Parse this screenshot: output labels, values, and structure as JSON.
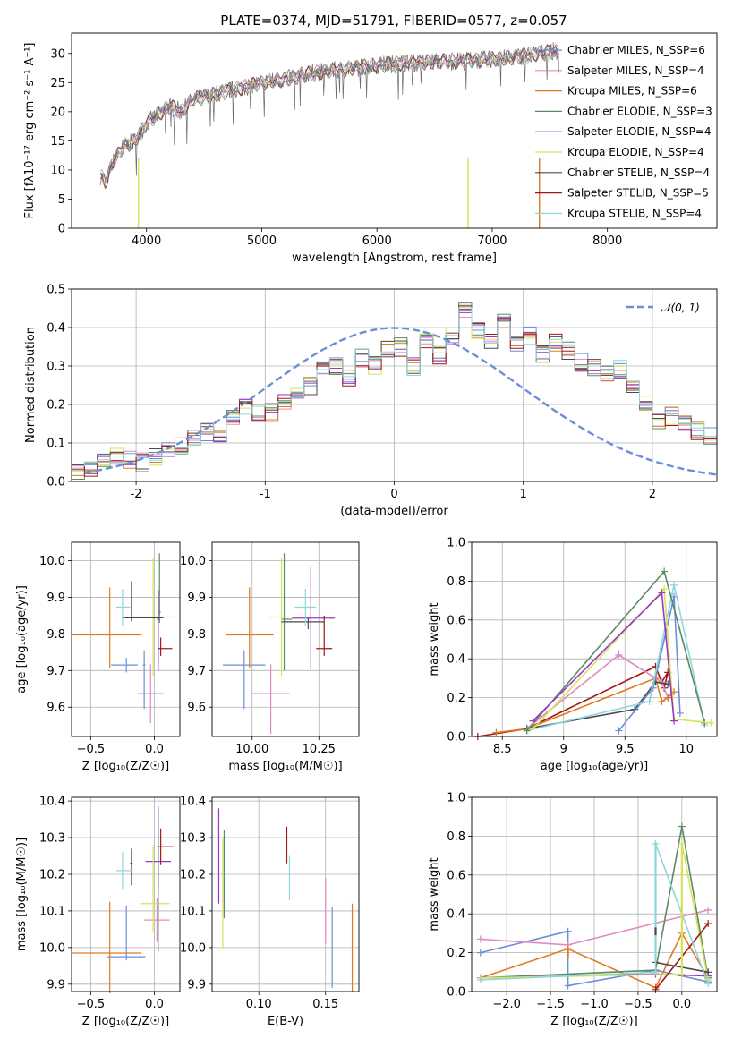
{
  "title": "PLATE=0374, MJD=51791, FIBERID=0577, z=0.057",
  "colors": {
    "c1": "#6a8fd8",
    "c2": "#e08ac2",
    "c3": "#e07a22",
    "c4": "#5b8a63",
    "c5": "#9a36c9",
    "c6": "#d6e25c",
    "c7": "#4a4a4a",
    "c8": "#a01818",
    "c9": "#8dd6dc",
    "data": "#6b6b6b"
  },
  "chart_data": [
    {
      "id": "spectrum",
      "type": "line",
      "xlabel": "wavelength [Angstrom, rest frame]",
      "ylabel": "Flux [f_λ 10^-17 erg cm^-2 s^-1 A^-1]",
      "xlim": [
        3350,
        8950
      ],
      "ylim": [
        0,
        33.5
      ],
      "xticks": [
        4000,
        5000,
        6000,
        7000,
        8000
      ],
      "yticks": [
        0,
        5,
        10,
        15,
        20,
        25,
        30
      ],
      "legend": [
        "Chabrier MILES, N_SSP=6",
        "Salpeter MILES, N_SSP=4",
        "Kroupa MILES, N_SSP=6",
        "Chabrier ELODIE, N_SSP=3",
        "Salpeter ELODIE, N_SSP=4",
        "Kroupa ELODIE, N_SSP=4",
        "Chabrier STELIB, N_SSP=4",
        "Salpeter STELIB, N_SSP=5",
        "Kroupa STELIB, N_SSP=4"
      ],
      "continuum": {
        "x": [
          3600,
          3650,
          3700,
          3800,
          3900,
          4000,
          4100,
          4200,
          4300,
          4400,
          4600,
          4800,
          5000,
          5200,
          5400,
          5600,
          5800,
          6000,
          6200,
          6500,
          6800,
          7000,
          7200,
          7400,
          7600
        ],
        "y": [
          9,
          8,
          11,
          14,
          15,
          18,
          19.5,
          21,
          20,
          22,
          23,
          24,
          25,
          25.5,
          26.5,
          27,
          27.5,
          28,
          28.3,
          28.6,
          28.8,
          29,
          29.4,
          30,
          30.5
        ]
      }
    },
    {
      "id": "residual-histogram",
      "type": "bar",
      "xlabel": "(data-model)/error",
      "ylabel": "Normed distribution",
      "xlim": [
        -2.5,
        2.5
      ],
      "ylim": [
        0,
        0.5
      ],
      "xticks": [
        -2,
        -1,
        0,
        1,
        2
      ],
      "yticks": [
        0,
        0.1,
        0.2,
        0.3,
        0.4,
        0.5
      ],
      "reference": {
        "name": "𝒩(0, 1)",
        "mean": 0,
        "sigma": 1
      },
      "bin_edges_start": -2.5,
      "bin_width": 0.1,
      "histogram": [
        0.03,
        0.035,
        0.06,
        0.07,
        0.055,
        0.05,
        0.06,
        0.08,
        0.09,
        0.11,
        0.13,
        0.12,
        0.16,
        0.19,
        0.18,
        0.18,
        0.21,
        0.23,
        0.25,
        0.29,
        0.3,
        0.27,
        0.32,
        0.3,
        0.34,
        0.35,
        0.3,
        0.36,
        0.33,
        0.38,
        0.44,
        0.39,
        0.37,
        0.41,
        0.36,
        0.38,
        0.33,
        0.36,
        0.34,
        0.31,
        0.3,
        0.28,
        0.29,
        0.24,
        0.2,
        0.16,
        0.17,
        0.15,
        0.13,
        0.12,
        0.1,
        0.11,
        0.09,
        0.08,
        0.08,
        0.07,
        0.06,
        0.05,
        0.045,
        0.04,
        0.04,
        0.03
      ]
    },
    {
      "id": "age-vs-metallicity",
      "type": "scatter",
      "xlabel": "Z [log₁₀(Z/Z☉)]",
      "ylabel": "age  [log₁₀(age/yr)]",
      "xlim": [
        -0.65,
        0.2
      ],
      "ylim": [
        9.52,
        10.05
      ],
      "xticks": [
        -0.5,
        0.0
      ],
      "xticklabels": [
        "−0.5",
        "0.0"
      ],
      "yticks": [
        9.6,
        9.7,
        9.8,
        9.9,
        10.0
      ],
      "points": [
        {
          "x": -0.22,
          "y": 9.715,
          "xerr": [
            0.12,
            0.09
          ],
          "yerr": [
            0.02,
            0.02
          ],
          "c": "c1"
        },
        {
          "x": -0.08,
          "y": 9.715,
          "xerr": [
            0.01,
            0.01
          ],
          "yerr": [
            0.12,
            0.04
          ],
          "c": "c1"
        },
        {
          "x": -0.03,
          "y": 9.637,
          "xerr": [
            0.1,
            0.1
          ],
          "yerr": [
            0.08,
            0.08
          ],
          "c": "c2"
        },
        {
          "x": -0.35,
          "y": 9.797,
          "xerr": [
            0.3,
            0.25
          ],
          "yerr": [
            0.09,
            0.13
          ],
          "c": "c3"
        },
        {
          "x": 0.04,
          "y": 9.86,
          "xerr": [
            0.01,
            0.01
          ],
          "yerr": [
            0.03,
            0.16
          ],
          "c": "c4"
        },
        {
          "x": 0.03,
          "y": 9.84,
          "xerr": [
            0.01,
            0.01
          ],
          "yerr": [
            0.14,
            0.08
          ],
          "c": "c5"
        },
        {
          "x": -0.01,
          "y": 9.846,
          "xerr": [
            0.18,
            0.16
          ],
          "yerr": [
            0.16,
            0.16
          ],
          "c": "c6"
        },
        {
          "x": -0.18,
          "y": 9.844,
          "xerr": [
            0.07,
            0.25
          ],
          "yerr": [
            0.01,
            0.1
          ],
          "c": "c7"
        },
        {
          "x": 0.05,
          "y": 9.76,
          "xerr": [
            0.02,
            0.09
          ],
          "yerr": [
            0.02,
            0.03
          ],
          "c": "c8"
        },
        {
          "x": -0.25,
          "y": 9.873,
          "xerr": [
            0.05,
            0.06
          ],
          "yerr": [
            0.05,
            0.05
          ],
          "c": "c9"
        }
      ]
    },
    {
      "id": "age-vs-mass",
      "type": "scatter",
      "xlabel": "mass [log₁₀(M/M☉)]",
      "ylabel": "",
      "xlim": [
        9.85,
        10.4
      ],
      "ylim": [
        9.52,
        10.05
      ],
      "xticks": [
        10.0,
        10.25
      ],
      "xticklabels": [
        "10.00",
        "10.25"
      ],
      "yticks": [
        9.6,
        9.7,
        9.8,
        9.9,
        10.0
      ],
      "points": [
        {
          "x": 9.97,
          "y": 9.715,
          "xerr": [
            0.08,
            0.08
          ],
          "yerr": [
            0.12,
            0.04
          ],
          "c": "c1"
        },
        {
          "x": 10.07,
          "y": 9.637,
          "xerr": [
            0.07,
            0.07
          ],
          "yerr": [
            0.11,
            0.08
          ],
          "c": "c2"
        },
        {
          "x": 9.99,
          "y": 9.797,
          "xerr": [
            0.09,
            0.09
          ],
          "yerr": [
            0.09,
            0.13
          ],
          "c": "c3"
        },
        {
          "x": 10.12,
          "y": 9.84,
          "xerr": [
            0.01,
            0.03
          ],
          "yerr": [
            0.14,
            0.18
          ],
          "c": "c4"
        },
        {
          "x": 10.22,
          "y": 9.843,
          "xerr": [
            0.07,
            0.09
          ],
          "yerr": [
            0.14,
            0.14
          ],
          "c": "c5"
        },
        {
          "x": 10.11,
          "y": 9.846,
          "xerr": [
            0.05,
            0.04
          ],
          "yerr": [
            0.16,
            0.16
          ],
          "c": "c6"
        },
        {
          "x": 10.21,
          "y": 9.833,
          "xerr": [
            0.1,
            0.06
          ],
          "yerr": [
            0.02,
            0.01
          ],
          "c": "c7"
        },
        {
          "x": 10.27,
          "y": 9.76,
          "xerr": [
            0.03,
            0.03
          ],
          "yerr": [
            0.02,
            0.09
          ],
          "c": "c8"
        },
        {
          "x": 10.2,
          "y": 9.873,
          "xerr": [
            0.04,
            0.04
          ],
          "yerr": [
            0.05,
            0.05
          ],
          "c": "c9"
        }
      ]
    },
    {
      "id": "mass-weight-vs-age",
      "type": "line",
      "xlabel": "age  [log₁₀(age/yr)]",
      "ylabel": "mass weight",
      "xlim": [
        8.25,
        10.25
      ],
      "ylim": [
        0,
        1.0
      ],
      "xticks": [
        8.5,
        9.0,
        9.5,
        10.0
      ],
      "yticks": [
        0,
        0.2,
        0.4,
        0.6,
        0.8,
        1.0
      ],
      "series": [
        {
          "c": "c8",
          "x": [
            8.3,
            8.7,
            9.75,
            9.8,
            9.85,
            9.82
          ],
          "y": [
            0.0,
            0.04,
            0.36,
            0.28,
            0.33,
            0.25
          ]
        },
        {
          "c": "c2",
          "x": [
            8.7,
            9.45,
            9.8,
            9.85
          ],
          "y": [
            0.04,
            0.42,
            0.28,
            0.2
          ]
        },
        {
          "c": "c3",
          "x": [
            8.45,
            8.7,
            9.75,
            9.8,
            9.85,
            9.9
          ],
          "y": [
            0.02,
            0.04,
            0.3,
            0.18,
            0.2,
            0.23
          ]
        },
        {
          "c": "c7",
          "x": [
            8.7,
            9.58,
            9.75,
            9.85
          ],
          "y": [
            0.04,
            0.14,
            0.28,
            0.27
          ]
        },
        {
          "c": "c1",
          "x": [
            9.45,
            9.73,
            9.9,
            9.95
          ],
          "y": [
            0.03,
            0.25,
            0.72,
            0.12
          ]
        },
        {
          "c": "c9",
          "x": [
            8.7,
            9.7,
            9.9,
            10.15
          ],
          "y": [
            0.03,
            0.18,
            0.78,
            0.06
          ]
        },
        {
          "c": "c4",
          "x": [
            8.7,
            9.82,
            10.15
          ],
          "y": [
            0.03,
            0.85,
            0.07
          ]
        },
        {
          "c": "c6",
          "x": [
            8.75,
            9.82,
            9.9,
            10.2
          ],
          "y": [
            0.04,
            0.76,
            0.09,
            0.07
          ]
        },
        {
          "c": "c5",
          "x": [
            8.75,
            9.8,
            9.9
          ],
          "y": [
            0.08,
            0.74,
            0.08
          ]
        }
      ]
    },
    {
      "id": "mass-vs-metallicity",
      "type": "scatter",
      "xlabel": "Z [log₁₀(Z/Z☉)]",
      "ylabel": "mass [log₁₀(M/M☉)]",
      "xlim": [
        -0.65,
        0.2
      ],
      "ylim": [
        9.88,
        10.41
      ],
      "xticks": [
        -0.5,
        0.0
      ],
      "xticklabels": [
        "−0.5",
        "0.0"
      ],
      "yticks": [
        9.9,
        10.0,
        10.1,
        10.2,
        10.3,
        10.4
      ],
      "points": [
        {
          "x": -0.22,
          "y": 9.975,
          "xerr": [
            0.15,
            0.15
          ],
          "yerr": [
            0.01,
            0.14
          ],
          "c": "c1"
        },
        {
          "x": -0.35,
          "y": 9.985,
          "xerr": [
            0.3,
            0.25
          ],
          "yerr": [
            0.11,
            0.14
          ],
          "c": "c3"
        },
        {
          "x": 0.02,
          "y": 10.075,
          "xerr": [
            0.1,
            0.1
          ],
          "yerr": [
            0.06,
            0.06
          ],
          "c": "c2"
        },
        {
          "x": 0.03,
          "y": 10.235,
          "xerr": [
            0.1,
            0.1
          ],
          "yerr": [
            0.08,
            0.15
          ],
          "c": "c5"
        },
        {
          "x": -0.01,
          "y": 10.12,
          "xerr": [
            0.1,
            0.13
          ],
          "yerr": [
            0.08,
            0.16
          ],
          "c": "c6"
        },
        {
          "x": 0.03,
          "y": 10.11,
          "xerr": [
            0.01,
            0.01
          ],
          "yerr": [
            0.12,
            0.22
          ],
          "c": "c4"
        },
        {
          "x": -0.18,
          "y": 10.23,
          "xerr": [
            0.01,
            0.01
          ],
          "yerr": [
            0.06,
            0.04
          ],
          "c": "c7"
        },
        {
          "x": 0.05,
          "y": 10.275,
          "xerr": [
            0.03,
            0.1
          ],
          "yerr": [
            0.05,
            0.05
          ],
          "c": "c8"
        },
        {
          "x": -0.25,
          "y": 10.21,
          "xerr": [
            0.05,
            0.08
          ],
          "yerr": [
            0.05,
            0.05
          ],
          "c": "c9"
        }
      ]
    },
    {
      "id": "mass-vs-ebv",
      "type": "scatter",
      "xlabel": "E(B-V)",
      "ylabel": "",
      "xlim": [
        0.065,
        0.175
      ],
      "ylim": [
        9.88,
        10.41
      ],
      "xticks": [
        0.1,
        0.15
      ],
      "xticklabels": [
        "0.10",
        "0.15"
      ],
      "yticks": [
        9.9,
        10.0,
        10.1,
        10.2,
        10.3,
        10.4
      ],
      "points": [
        {
          "x": 0.07,
          "y": 10.25,
          "xerr": [
            0,
            0
          ],
          "yerr": [
            0.13,
            0.13
          ],
          "c": "c5"
        },
        {
          "x": 0.073,
          "y": 10.15,
          "xerr": [
            0,
            0
          ],
          "yerr": [
            0.15,
            0.15
          ],
          "c": "c6"
        },
        {
          "x": 0.074,
          "y": 10.2,
          "xerr": [
            0,
            0
          ],
          "yerr": [
            0.12,
            0.12
          ],
          "c": "c4"
        },
        {
          "x": 0.121,
          "y": 10.28,
          "xerr": [
            0,
            0
          ],
          "yerr": [
            0.05,
            0.05
          ],
          "c": "c8"
        },
        {
          "x": 0.123,
          "y": 10.19,
          "xerr": [
            0,
            0
          ],
          "yerr": [
            0.06,
            0.06
          ],
          "c": "c9"
        },
        {
          "x": 0.15,
          "y": 10.1,
          "xerr": [
            0,
            0
          ],
          "yerr": [
            0.09,
            0.09
          ],
          "c": "c2"
        },
        {
          "x": 0.155,
          "y": 10.0,
          "xerr": [
            0,
            0
          ],
          "yerr": [
            0.11,
            0.11
          ],
          "c": "c1"
        },
        {
          "x": 0.17,
          "y": 10.0,
          "xerr": [
            0,
            0
          ],
          "yerr": [
            0.12,
            0.12
          ],
          "c": "c3"
        }
      ]
    },
    {
      "id": "mass-weight-vs-metallicity",
      "type": "line",
      "xlabel": "Z [log₁₀(Z/Z☉)]",
      "ylabel": "mass weight",
      "xlim": [
        -2.4,
        0.4
      ],
      "ylim": [
        0,
        1.0
      ],
      "xticks": [
        -2.0,
        -1.5,
        -1.0,
        -0.5,
        0.0
      ],
      "xticklabels": [
        "−2.0",
        "−1.5",
        "−1.0",
        "−0.5",
        "0.0"
      ],
      "yticks": [
        0,
        0.2,
        0.4,
        0.6,
        0.8,
        1.0
      ],
      "series": [
        {
          "c": "c1",
          "x": [
            -2.3,
            -1.3,
            -1.3,
            -0.3,
            0.3
          ],
          "y": [
            0.2,
            0.31,
            0.03,
            0.11,
            0.05
          ]
        },
        {
          "c": "c2",
          "x": [
            -2.3,
            -1.3,
            0.3
          ],
          "y": [
            0.27,
            0.24,
            0.42
          ]
        },
        {
          "c": "c3",
          "x": [
            -2.3,
            -1.3,
            -0.3,
            0.0,
            0.3
          ],
          "y": [
            0.07,
            0.22,
            0.02,
            0.3,
            0.07
          ]
        },
        {
          "c": "c4",
          "x": [
            -2.3,
            -0.3,
            0.0,
            0.3
          ],
          "y": [
            0.07,
            0.11,
            0.85,
            0.07
          ]
        },
        {
          "c": "c5",
          "x": [
            -2.3,
            -0.3,
            0.3
          ],
          "y": [
            0.07,
            0.09,
            0.08
          ]
        },
        {
          "c": "c6",
          "x": [
            -2.3,
            0.0,
            0.0,
            0.3
          ],
          "y": [
            0.07,
            0.09,
            0.76,
            0.06
          ]
        },
        {
          "c": "c7",
          "x": [
            -0.3,
            0.3
          ],
          "y": [
            0.15,
            0.1
          ]
        },
        {
          "c": "c8",
          "x": [
            -0.3,
            0.3
          ],
          "y": [
            0.01,
            0.35
          ]
        },
        {
          "c": "c9",
          "x": [
            -2.3,
            -0.3,
            -0.3,
            0.3
          ],
          "y": [
            0.06,
            0.1,
            0.76,
            0.04
          ]
        }
      ],
      "vbars": [
        {
          "c": "c9",
          "x": -0.3,
          "y0": 0.16,
          "y1": 0.77
        },
        {
          "c": "c6",
          "x": 0.0,
          "y0": 0.1,
          "y1": 0.76
        },
        {
          "c": "c3",
          "x": -1.3,
          "y0": 0.17,
          "y1": 0.23
        },
        {
          "c": "c7",
          "x": -0.3,
          "y0": 0.29,
          "y1": 0.33
        }
      ]
    }
  ]
}
